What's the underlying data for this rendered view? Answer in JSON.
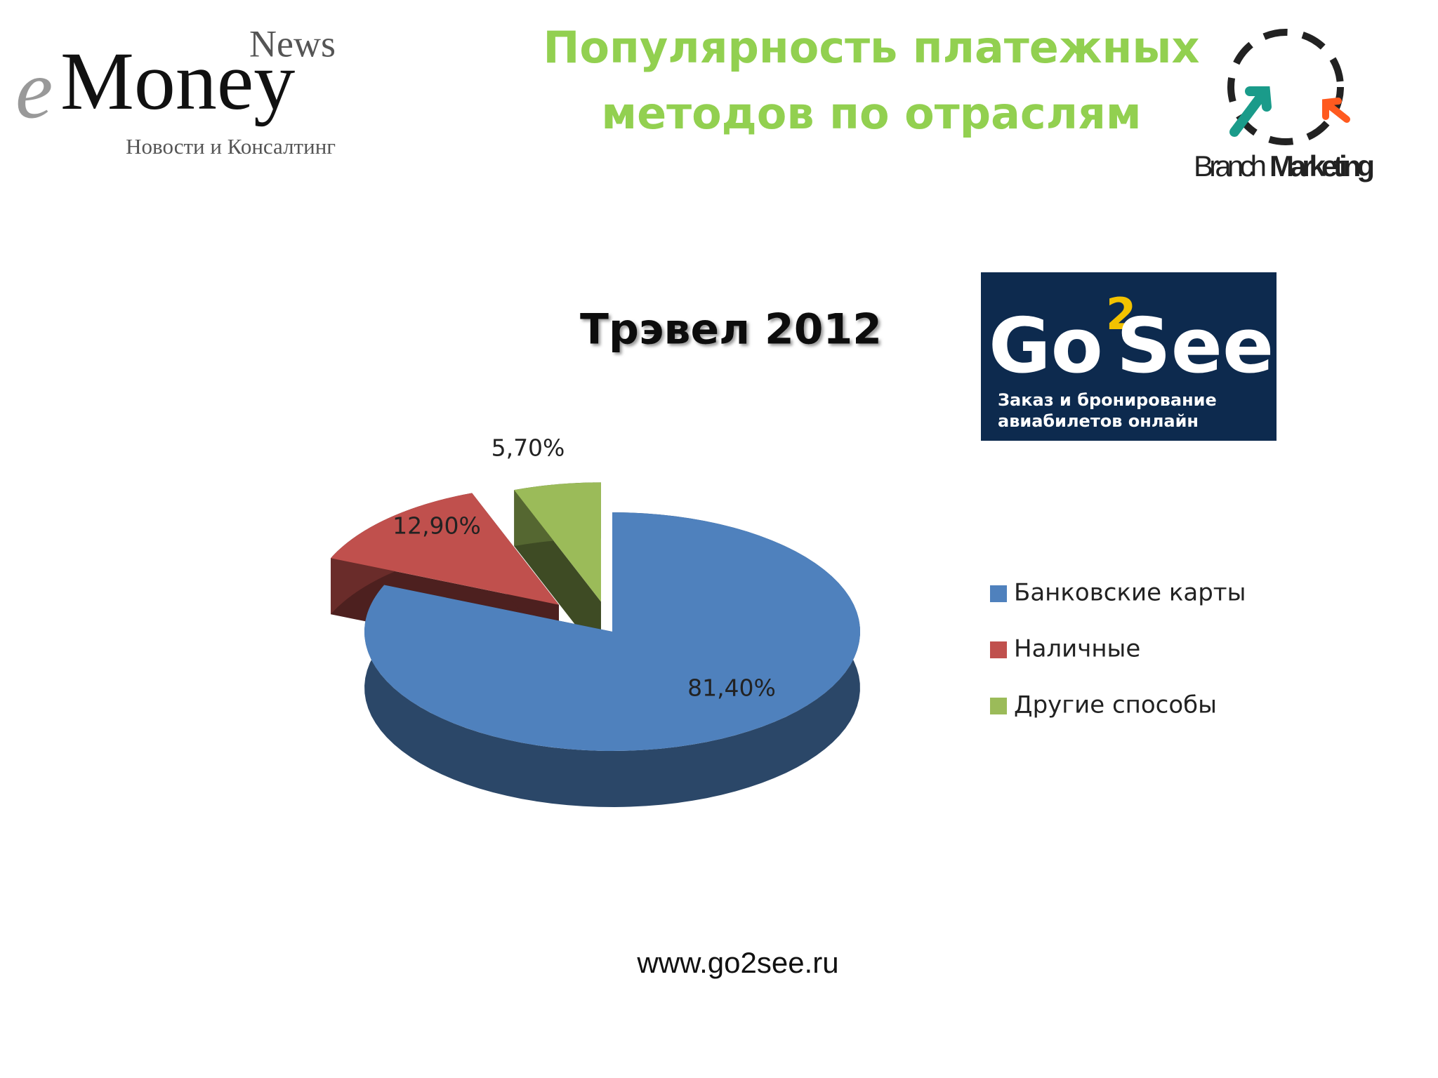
{
  "header": {
    "title_lines": [
      "Популярность платежных",
      "методов по отраслям"
    ]
  },
  "emoney_logo": {
    "news": "News",
    "prefix": "e",
    "name": "Money",
    "tagline": "Новости и Консалтинг"
  },
  "branch_logo": {
    "first": "Branch",
    "second": "Marketing"
  },
  "go2see_logo": {
    "go": "Go",
    "two": "2",
    "see": "See",
    "tagline_lines": [
      "Заказ и бронирование",
      "авиабилетов онлайн"
    ]
  },
  "chart_data": {
    "type": "pie",
    "title": "Трэвел 2012",
    "categories": [
      "Банковские карты",
      "Наличные",
      "Другие способы"
    ],
    "values": [
      81.4,
      12.9,
      5.7
    ],
    "value_labels": [
      "81,40%",
      "12,90%",
      "5,70%"
    ],
    "colors": [
      "#4f81bd",
      "#c0504d",
      "#9bbb59"
    ],
    "legend": "right"
  },
  "footer": {
    "url": "www.go2see.ru"
  }
}
